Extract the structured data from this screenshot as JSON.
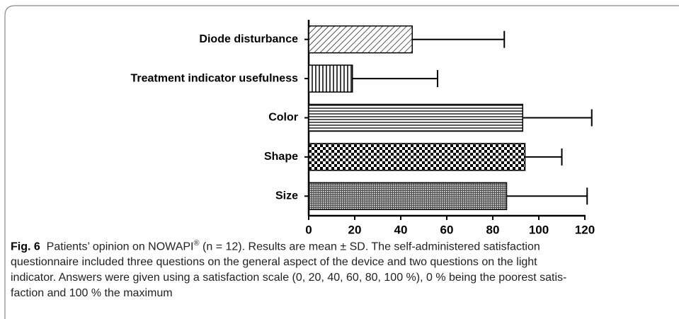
{
  "chart_data": {
    "type": "hbar",
    "categories": [
      "Diode disturbance",
      "Treatment indicator usefulness",
      "Color",
      "Shape",
      "Size"
    ],
    "values": [
      45,
      19,
      93,
      94,
      86
    ],
    "errors": [
      40,
      37,
      30,
      16,
      35
    ],
    "xlim": [
      0,
      120
    ],
    "xticks": [
      0,
      20,
      40,
      60,
      80,
      100,
      120
    ],
    "color": "#000000"
  },
  "caption": {
    "label": "Fig. 6",
    "first_line": [
      "Patients’ opinion on NOWAPI",
      "®",
      " (n = 12). Results are mean ± SD. The self-administered satisfaction"
    ],
    "lines": [
      "questionnaire included three questions on the general aspect of the device and two questions on the light",
      "indicator. Answers were given using a satisfaction scale (0, 20, 40, 60, 80, 100 %), 0 % being the poorest satis-",
      "faction and 100 % the maximum"
    ]
  }
}
